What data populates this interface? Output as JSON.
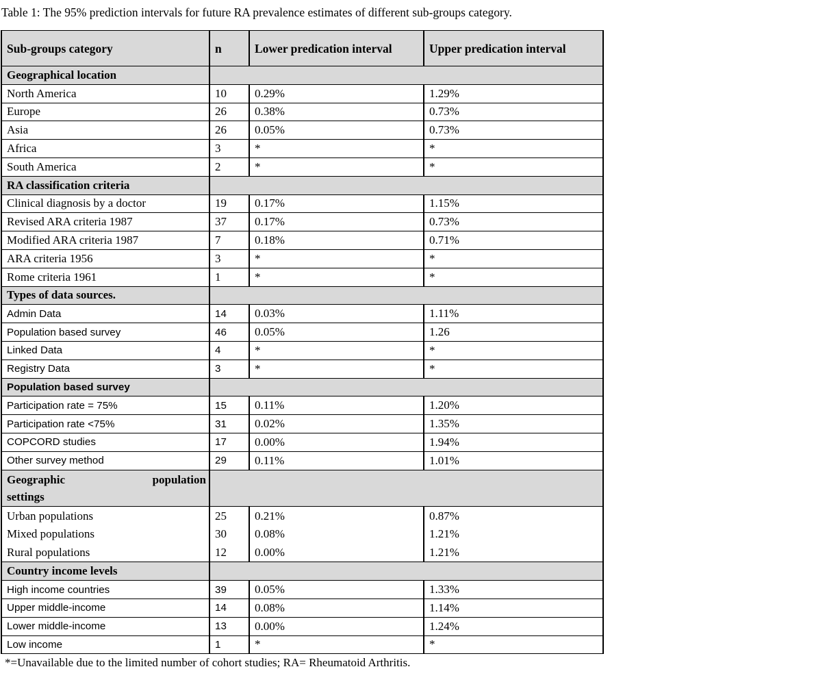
{
  "title": "Table 1: The 95% prediction intervals for future RA prevalence estimates of different sub-groups category.",
  "footnote": "*=Unavailable due to the limited number of cohort studies; RA= Rheumatoid Arthritis.",
  "colors": {
    "section_bg": "#d9d9d9",
    "border": "#000000",
    "text": "#000000",
    "page_bg": "#ffffff"
  },
  "table": {
    "headers": {
      "category": "Sub-groups category",
      "n": "n",
      "lower": "Lower predication interval",
      "upper": "Upper predication interval"
    },
    "sections": [
      {
        "name": "Geographical location",
        "name_font": "serif",
        "rows_font": "serif",
        "rows": [
          {
            "label": "North America",
            "n": "10",
            "lower": "0.29%",
            "upper": "1.29%"
          },
          {
            "label": "Europe",
            "n": "26",
            "lower": "0.38%",
            "upper": "0.73%"
          },
          {
            "label": "Asia",
            "n": "26",
            "lower": "0.05%",
            "upper": "0.73%"
          },
          {
            "label": "Africa",
            "n": "3",
            "lower": "*",
            "upper": "*"
          },
          {
            "label": "South America",
            "n": "2",
            "lower": "*",
            "upper": "*"
          }
        ]
      },
      {
        "name": "RA classification criteria",
        "name_font": "serif",
        "rows_font": "serif",
        "rows": [
          {
            "label": "Clinical diagnosis by a doctor",
            "n": "19",
            "lower": "0.17%",
            "upper": "1.15%"
          },
          {
            "label": "Revised ARA criteria 1987",
            "n": "37",
            "lower": "0.17%",
            "upper": "0.73%"
          },
          {
            "label": "Modified ARA criteria 1987",
            "n": "7",
            "lower": "0.18%",
            "upper": "0.71%"
          },
          {
            "label": "ARA criteria 1956",
            "n": "3",
            "lower": "*",
            "upper": "*"
          },
          {
            "label": "Rome criteria 1961",
            "n": "1",
            "lower": "*",
            "upper": "*"
          }
        ]
      },
      {
        "name": "Types of data sources.",
        "name_font": "serif",
        "rows_font": "sans",
        "rows": [
          {
            "label": "Admin Data",
            "n": "14",
            "lower": "0.03%",
            "upper": "1.11%"
          },
          {
            "label": "Population based survey",
            "n": "46",
            "lower": "0.05%",
            "upper": "1.26"
          },
          {
            "label": "Linked Data",
            "n": "4",
            "lower": "*",
            "upper": "*"
          },
          {
            "label": "Registry Data",
            "n": "3",
            "lower": "*",
            "upper": "*"
          }
        ]
      },
      {
        "name": "Population based survey",
        "name_font": "sans",
        "rows_font": "sans",
        "rows": [
          {
            "label": "Participation rate = 75%",
            "n": "15",
            "lower": "0.11%",
            "upper": "1.20%"
          },
          {
            "label": "Participation rate <75%",
            "n": "31",
            "lower": "0.02%",
            "upper": "1.35%"
          },
          {
            "label": "COPCORD studies",
            "n": "17",
            "lower": "0.00%",
            "upper": "1.94%"
          },
          {
            "label": "Other survey method",
            "n": "29",
            "lower": "0.11%",
            "upper": "1.01%"
          }
        ]
      },
      {
        "name": "Geographic population settings",
        "name_parts": {
          "w1": "Geographic",
          "w2": "population",
          "w3": "settings"
        },
        "name_font": "serif",
        "rows_font": "serif",
        "two_line_header": true,
        "merged_rows": true,
        "rows": [
          {
            "label": "Urban populations",
            "n": "25",
            "lower": "0.21%",
            "upper": "0.87%"
          },
          {
            "label": "Mixed populations",
            "n": "30",
            "lower": "0.08%",
            "upper": "1.21%"
          },
          {
            "label": "Rural populations",
            "n": "12",
            "lower": "0.00%",
            "upper": "1.21%"
          }
        ]
      },
      {
        "name": "Country income levels",
        "name_font": "serif",
        "rows_font": "sans",
        "rows": [
          {
            "label": "High income countries",
            "n": "39",
            "lower": "0.05%",
            "upper": "1.33%"
          },
          {
            "label": "Upper middle-income",
            "n": "14",
            "lower": "0.08%",
            "upper": "1.14%"
          },
          {
            "label": "Lower middle-income",
            "n": "13",
            "lower": "0.00%",
            "upper": "1.24%"
          },
          {
            "label": "Low income",
            "n": "1",
            "lower": "*",
            "upper": "*"
          }
        ]
      }
    ]
  }
}
